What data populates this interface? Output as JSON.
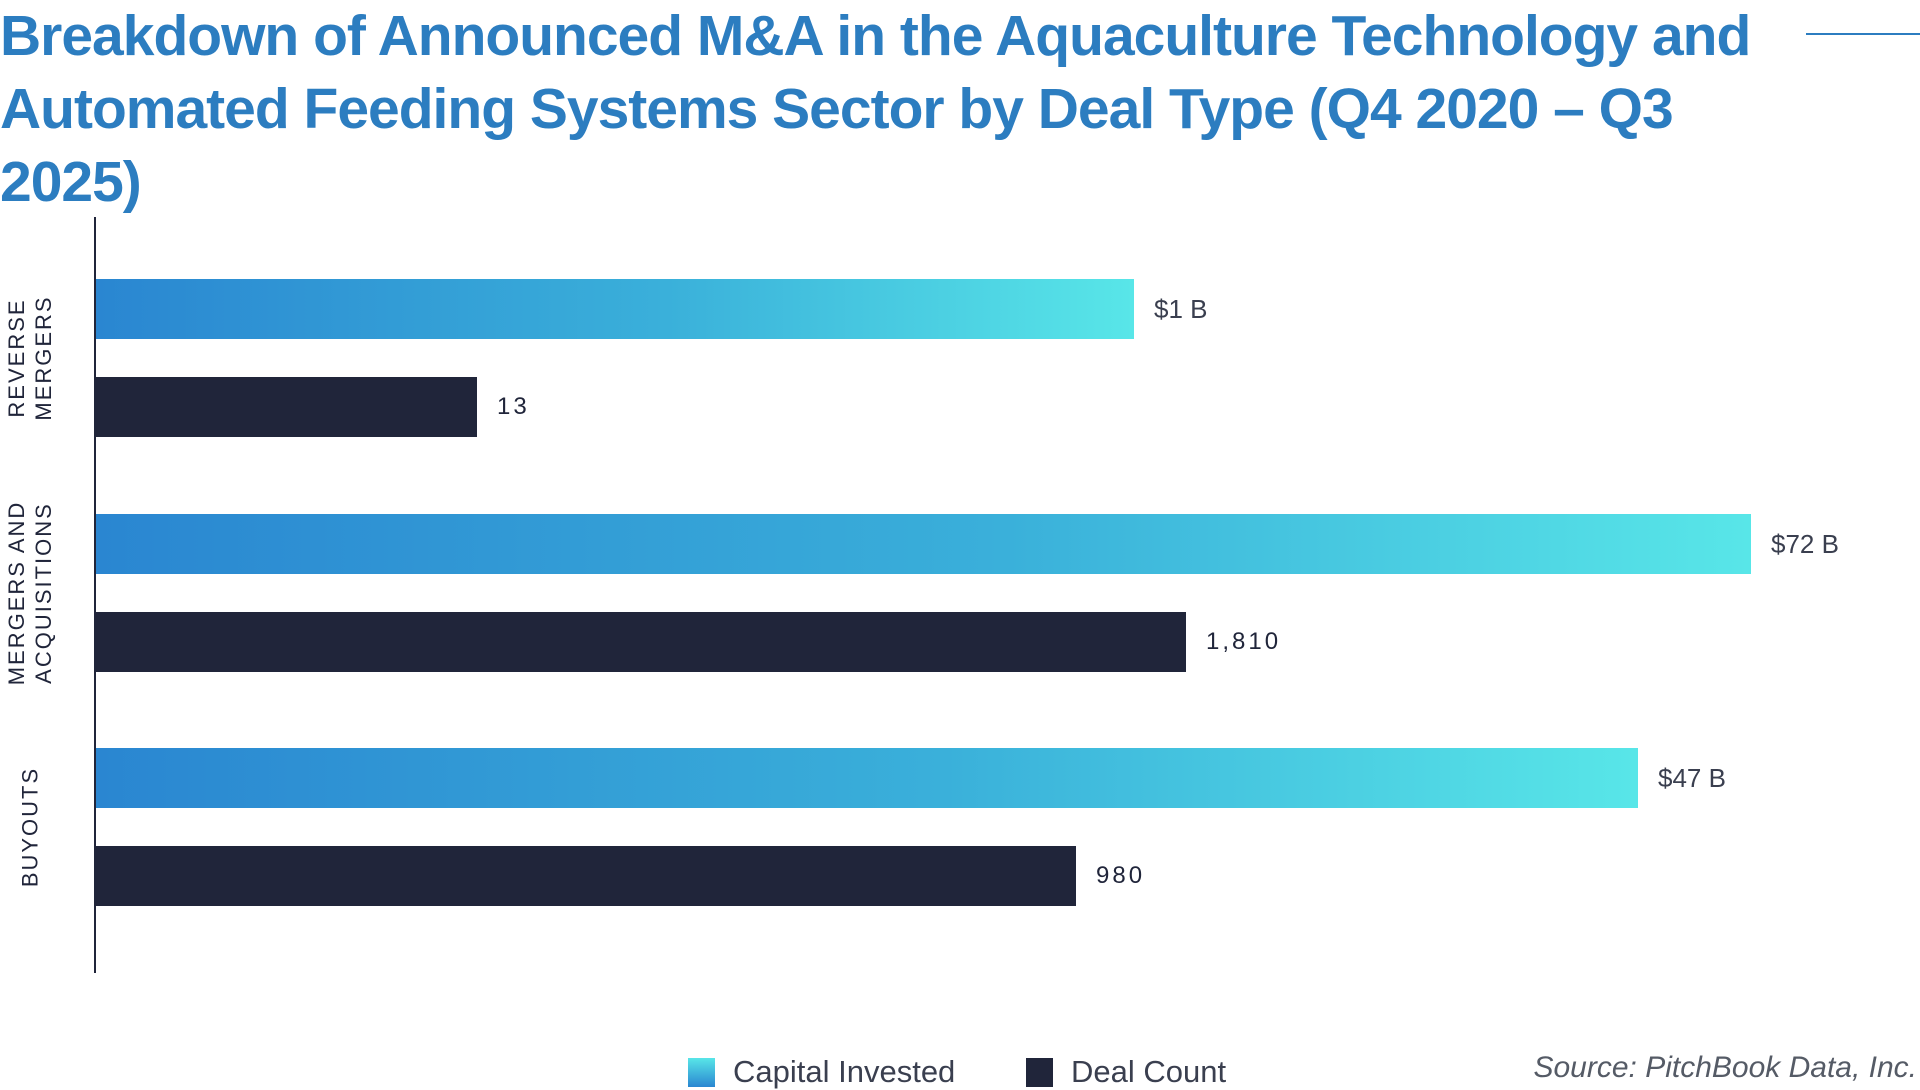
{
  "title": "Breakdown of Announced M&A in the Aquaculture Technology and Automated Feeding Systems Sector by Deal Type (Q4 2020 – Q3 2025)",
  "source": "Source: PitchBook Data, Inc.",
  "colors": {
    "title": "#2c7dc0",
    "capital_gradient_start": "#2a86d1",
    "capital_gradient_end": "#58e6e8",
    "deal_count": "#20253a"
  },
  "chart_data": {
    "type": "bar",
    "orientation": "horizontal",
    "title": "Breakdown of Announced M&A in the Aquaculture Technology and Automated Feeding Systems Sector by Deal Type (Q4 2020 – Q3 2025)",
    "categories": [
      "REVERSE MERGERS",
      "MERGERS AND ACQUISITIONS",
      "BUYOUTS"
    ],
    "category_lines": [
      [
        "REVERSE",
        "MERGERS"
      ],
      [
        "MERGERS AND",
        "ACQUISITIONS"
      ],
      [
        "BUYOUTS"
      ]
    ],
    "series": [
      {
        "name": "Capital Invested",
        "unit": "$B",
        "values": [
          1,
          72,
          47
        ],
        "labels": [
          "$1 B",
          "$72 B",
          "$47 B"
        ]
      },
      {
        "name": "Deal Count",
        "values": [
          13,
          1810,
          980
        ],
        "labels": [
          "13",
          "1,810",
          "980"
        ]
      }
    ],
    "legend": {
      "position": "bottom",
      "items": [
        "Capital Invested",
        "Deal Count"
      ]
    },
    "grid": false,
    "xaxis_visible": false
  }
}
